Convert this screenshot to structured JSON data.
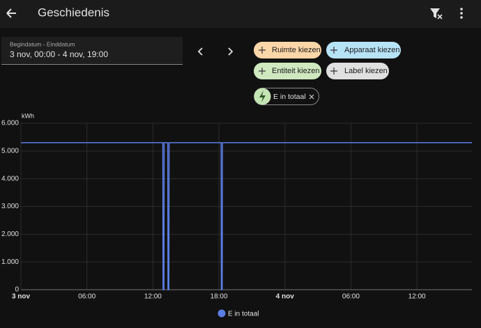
{
  "header": {
    "title": "Geschiedenis"
  },
  "date_picker": {
    "label": "Begindatum - Einddatum",
    "value": "3 nov, 00:00 - 4 nov, 19:00"
  },
  "filters": [
    "Ruimte kiezen",
    "Apparaat kiezen",
    "Entiteit kiezen",
    "Label kiezen"
  ],
  "selected": [
    "E in totaal"
  ],
  "chart_data": {
    "type": "line",
    "y_label": "kWh",
    "x": [
      0,
      12.9,
      12.92,
      13.0,
      13.02,
      13.35,
      13.37,
      13.45,
      13.47,
      18.2,
      18.22,
      18.3,
      18.32,
      41
    ],
    "series": [
      {
        "name": "E in totaal",
        "color": "#5b7ee5",
        "values": [
          5300,
          5300,
          0,
          0,
          5300,
          5300,
          0,
          0,
          5300,
          5300,
          0,
          0,
          5300,
          5300
        ]
      }
    ],
    "xlim": [
      0,
      41
    ],
    "xticks": [
      {
        "value": 0,
        "label": "3 nov"
      },
      {
        "value": 6,
        "label": "06:00"
      },
      {
        "value": 12,
        "label": "12:00"
      },
      {
        "value": 18,
        "label": "18:00"
      },
      {
        "value": 24,
        "label": "4 nov"
      },
      {
        "value": 30,
        "label": "06:00"
      },
      {
        "value": 36,
        "label": "12:00"
      }
    ],
    "ylim": [
      0,
      6000
    ],
    "yticks": [
      0,
      {
        "value": 1000,
        "label": "1.000"
      },
      {
        "value": 2000,
        "label": "2.000"
      },
      {
        "value": 3000,
        "label": "3.000"
      },
      {
        "value": 4000,
        "label": "4.000"
      },
      {
        "value": 5000,
        "label": "5.000"
      },
      {
        "value": 6000,
        "label": "6.000"
      }
    ],
    "grid": true
  }
}
